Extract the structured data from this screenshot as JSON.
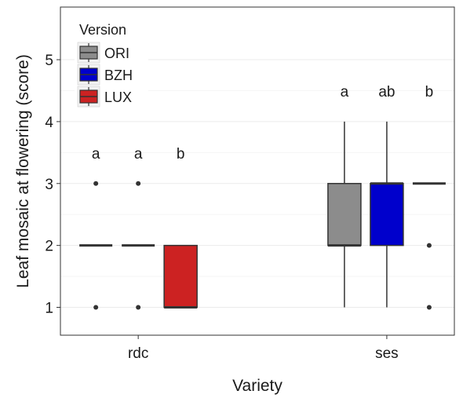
{
  "chart_data": {
    "type": "boxplot",
    "xlabel": "Variety",
    "ylabel": "Leaf mosaic at flowering (score)",
    "ylim": [
      0.55,
      5.85
    ],
    "yticks": [
      1,
      2,
      3,
      4,
      5
    ],
    "grid": true,
    "legend_position": "top-left",
    "categories": [
      "rdc",
      "ses"
    ],
    "legend": {
      "title": "Version",
      "entries": [
        {
          "name": "ORI",
          "color": "#8c8c8c"
        },
        {
          "name": "BZH",
          "color": "#0000cc"
        },
        {
          "name": "LUX",
          "color": "#cc2222"
        }
      ]
    },
    "series": [
      {
        "name": "ORI",
        "color": "#8c8c8c",
        "boxes": [
          {
            "category": "rdc",
            "min": 2,
            "q1": 2,
            "median": 2,
            "q3": 2,
            "max": 2,
            "outliers": [
              1,
              3
            ],
            "letter": "a"
          },
          {
            "category": "ses",
            "min": 1,
            "q1": 2,
            "median": 2,
            "q3": 3,
            "max": 4,
            "outliers": [],
            "letter": "a"
          }
        ]
      },
      {
        "name": "BZH",
        "color": "#0000cc",
        "boxes": [
          {
            "category": "rdc",
            "min": 2,
            "q1": 2,
            "median": 2,
            "q3": 2,
            "max": 2,
            "outliers": [
              1,
              3
            ],
            "letter": "a"
          },
          {
            "category": "ses",
            "min": 1,
            "q1": 2,
            "median": 3,
            "q3": 3,
            "max": 4,
            "outliers": [],
            "letter": "ab"
          }
        ]
      },
      {
        "name": "LUX",
        "color": "#cc2222",
        "boxes": [
          {
            "category": "rdc",
            "min": 1,
            "q1": 1,
            "median": 1,
            "q3": 2,
            "max": 2,
            "outliers": [],
            "letter": "b"
          },
          {
            "category": "ses",
            "min": 3,
            "q1": 3,
            "median": 3,
            "q3": 3,
            "max": 3,
            "outliers": [
              1,
              2
            ],
            "letter": "b"
          }
        ]
      }
    ]
  }
}
